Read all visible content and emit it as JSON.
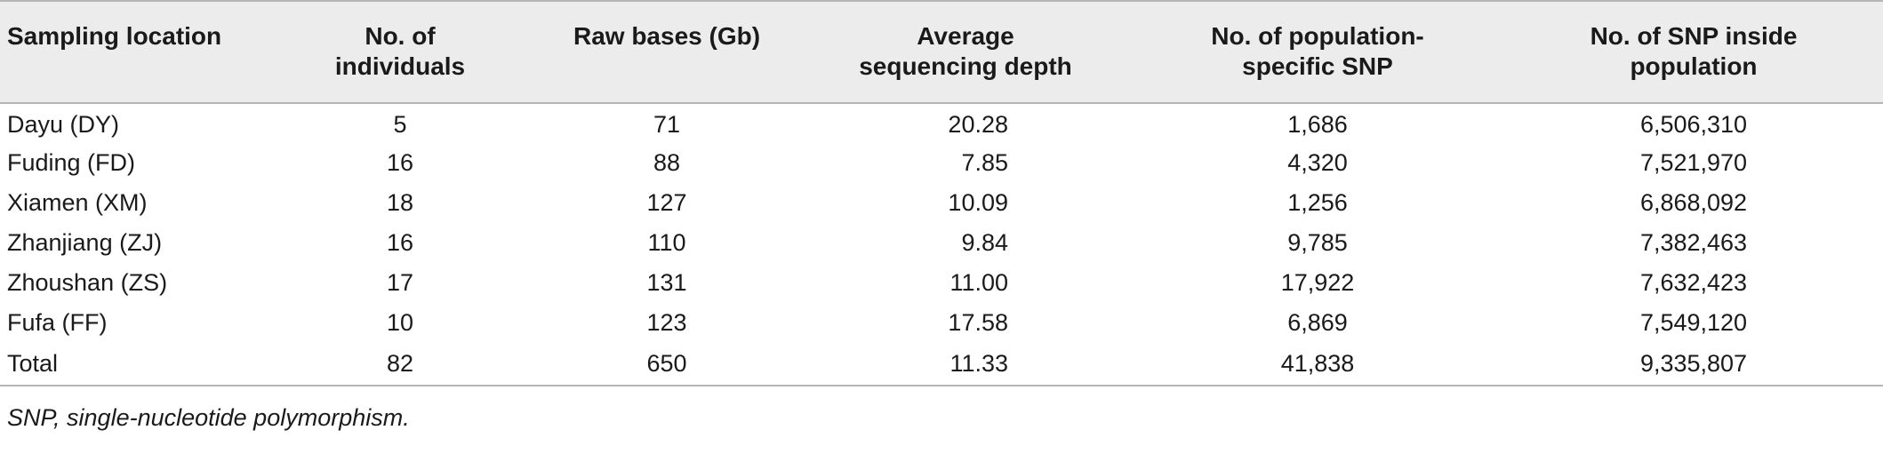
{
  "table": {
    "headers": [
      "Sampling location",
      "No. of\nindividuals",
      "Raw bases (Gb)",
      "Average\nsequencing depth",
      "No. of population-\nspecific SNP",
      "No. of SNP inside\npopulation"
    ],
    "rows": [
      [
        "Dayu (DY)",
        "5",
        "71",
        "20.28",
        "1,686",
        "6,506,310"
      ],
      [
        "Fuding (FD)",
        "16",
        "88",
        "7.85",
        "4,320",
        "7,521,970"
      ],
      [
        "Xiamen (XM)",
        "18",
        "127",
        "10.09",
        "1,256",
        "6,868,092"
      ],
      [
        "Zhanjiang (ZJ)",
        "16",
        "110",
        "9.84",
        "9,785",
        "7,382,463"
      ],
      [
        "Zhoushan (ZS)",
        "17",
        "131",
        "11.00",
        "17,922",
        "7,632,423"
      ],
      [
        "Fufa (FF)",
        "10",
        "123",
        "17.58",
        "6,869",
        "7,549,120"
      ],
      [
        "Total",
        "82",
        "650",
        "11.33",
        "41,838",
        "9,335,807"
      ]
    ]
  },
  "footnote": "SNP, single-nucleotide polymorphism."
}
